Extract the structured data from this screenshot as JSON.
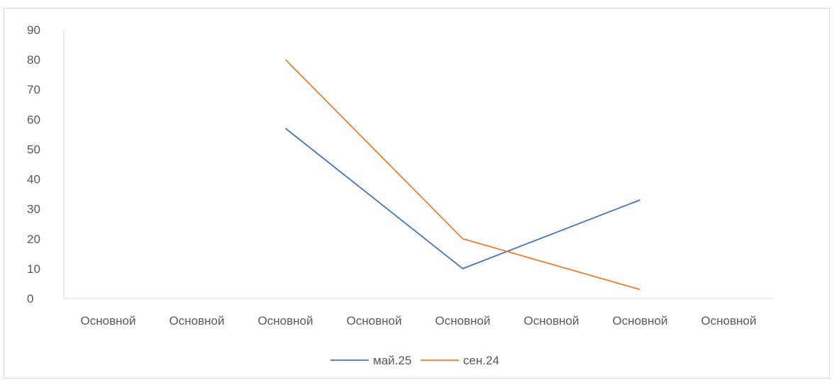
{
  "chart_data": {
    "type": "line",
    "title": "",
    "xlabel": "",
    "ylabel": "",
    "categories": [
      "Основной",
      "Основной",
      "Основной",
      "Основной",
      "Основной",
      "Основной",
      "Основной",
      "Основной"
    ],
    "ylim": [
      0,
      90
    ],
    "yticks": [
      0,
      10,
      20,
      30,
      40,
      50,
      60,
      70,
      80,
      90
    ],
    "grid": false,
    "legend_position": "bottom",
    "series": [
      {
        "name": "май.25",
        "color": "#4472C4",
        "values": [
          null,
          null,
          57,
          null,
          10,
          null,
          33,
          null
        ]
      },
      {
        "name": "сен.24",
        "color": "#ED7D31",
        "values": [
          null,
          null,
          80,
          null,
          20,
          null,
          3,
          null
        ]
      }
    ]
  }
}
